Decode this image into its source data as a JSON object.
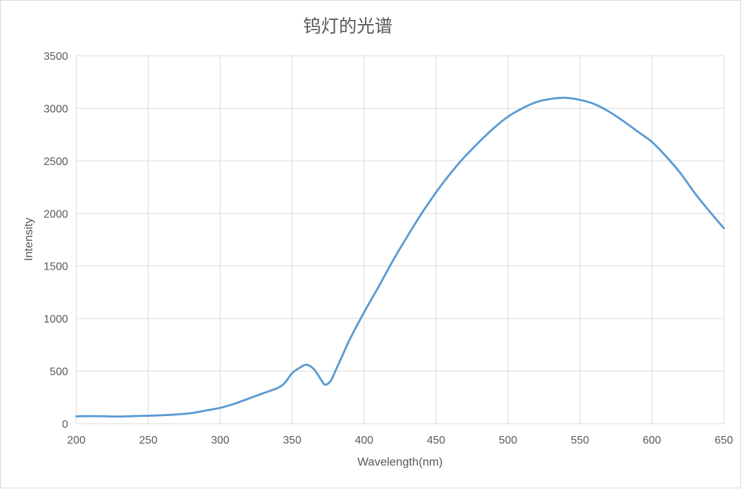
{
  "chart_data": {
    "type": "line",
    "title": "钨灯的光谱",
    "xlabel": "Wavelength(nm)",
    "ylabel": "Intensity",
    "xlim": [
      200,
      650
    ],
    "ylim": [
      0,
      3500
    ],
    "xticks": [
      200,
      250,
      300,
      350,
      400,
      450,
      500,
      550,
      600,
      650
    ],
    "yticks": [
      0,
      500,
      1000,
      1500,
      2000,
      2500,
      3000,
      3500
    ],
    "grid": true,
    "legend": "none",
    "series_color": "#5b9bd5",
    "series": [
      {
        "x": [
          200,
          210,
          220,
          230,
          240,
          250,
          260,
          270,
          280,
          290,
          300,
          310,
          320,
          330,
          340,
          345,
          350,
          355,
          360,
          365,
          370,
          373,
          377,
          380,
          385,
          390,
          400,
          410,
          420,
          430,
          440,
          450,
          460,
          470,
          480,
          490,
          500,
          510,
          520,
          530,
          540,
          550,
          560,
          570,
          580,
          590,
          600,
          610,
          620,
          630,
          640,
          650
        ],
        "y": [
          70,
          72,
          70,
          68,
          72,
          75,
          80,
          88,
          100,
          125,
          150,
          190,
          240,
          290,
          340,
          390,
          480,
          530,
          560,
          520,
          420,
          370,
          410,
          500,
          650,
          800,
          1060,
          1300,
          1550,
          1780,
          2000,
          2200,
          2380,
          2540,
          2680,
          2810,
          2920,
          3000,
          3060,
          3090,
          3100,
          3080,
          3040,
          2970,
          2880,
          2780,
          2680,
          2540,
          2380,
          2190,
          2020,
          1860
        ]
      }
    ]
  }
}
